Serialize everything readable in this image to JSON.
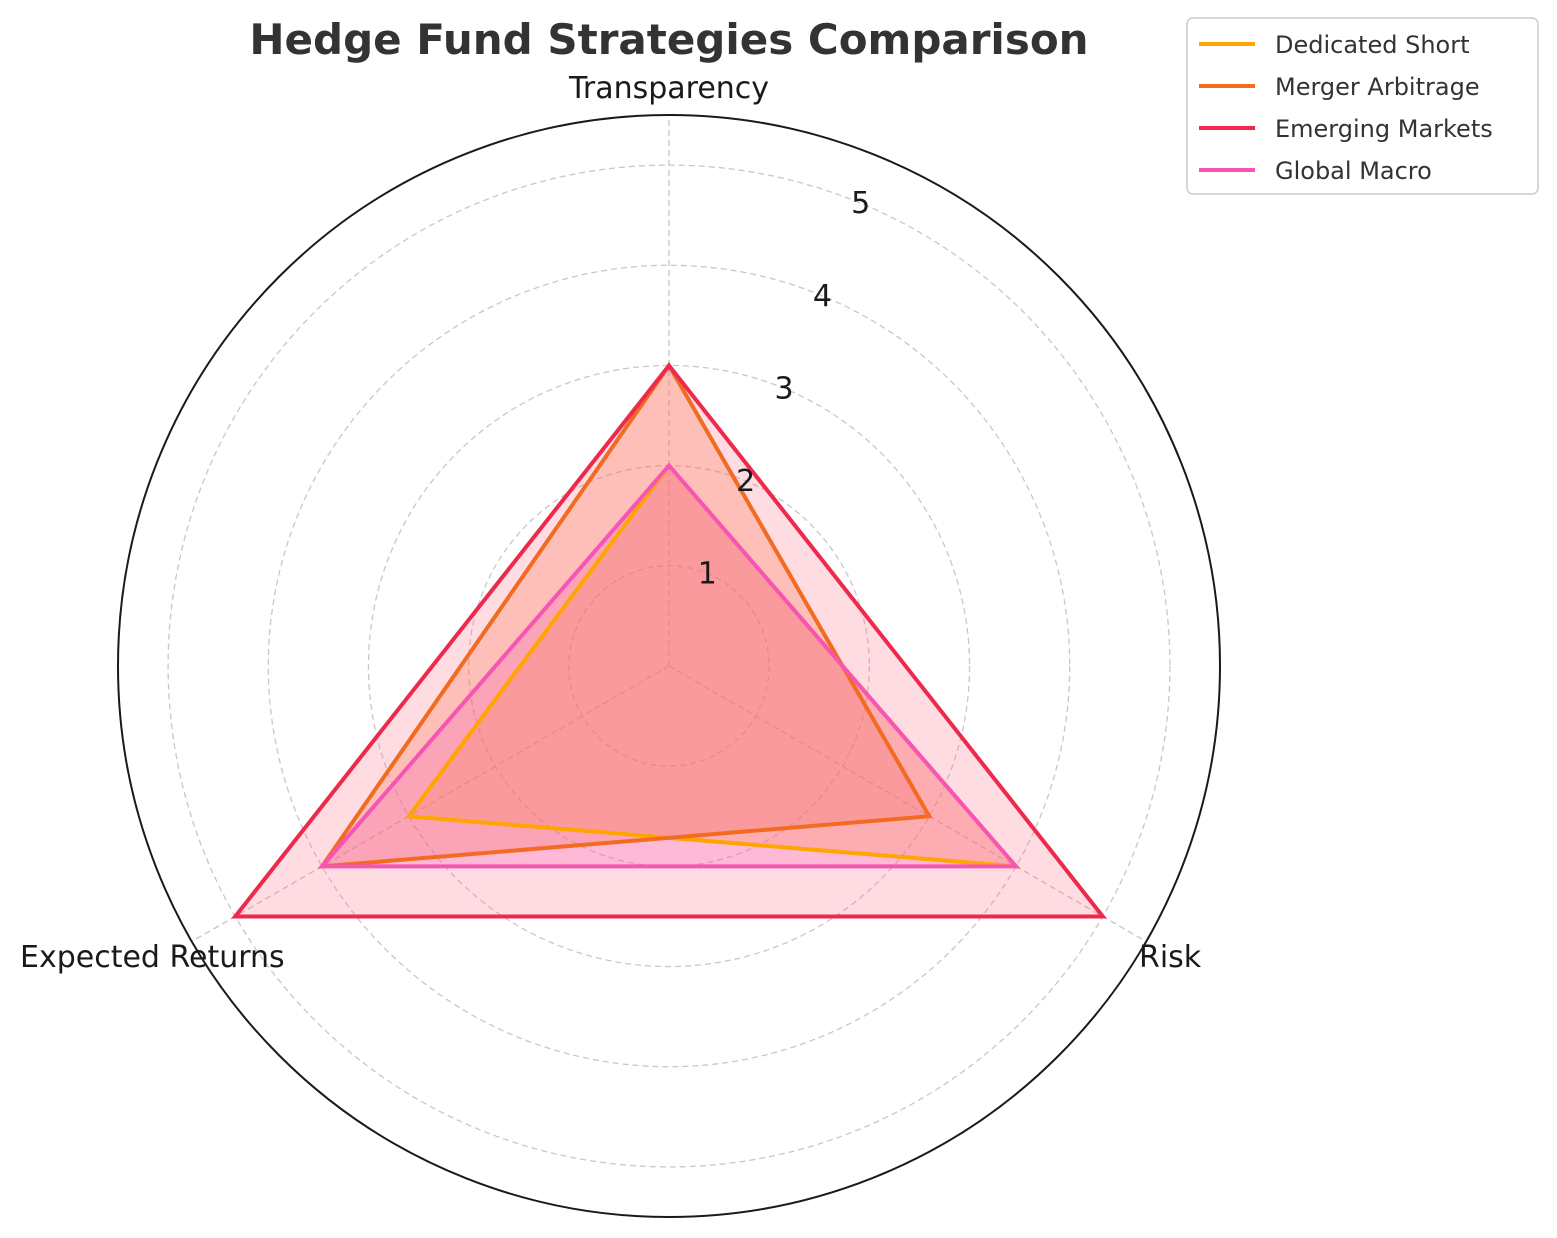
{
  "chart_data": {
    "type": "radar",
    "title": "Hedge Fund Strategies Comparison",
    "axes": [
      "Transparency",
      "Risk",
      "Expected Returns"
    ],
    "rlim": [
      0,
      5.5
    ],
    "rticks": [
      1,
      2,
      3,
      4,
      5
    ],
    "grid": true,
    "legend_position": "top-right",
    "series": [
      {
        "name": "Dedicated Short",
        "values": [
          2,
          4,
          3
        ],
        "color": "#FFA500"
      },
      {
        "name": "Merger Arbitrage",
        "values": [
          3,
          3,
          4
        ],
        "color": "#F26B21"
      },
      {
        "name": "Emerging Markets",
        "values": [
          3,
          5,
          5
        ],
        "color": "#EE2A4C"
      },
      {
        "name": "Global Macro",
        "values": [
          2,
          4,
          4
        ],
        "color": "#F755B5"
      }
    ],
    "fill_colors": [
      "#FFA500",
      "#F26B21",
      "#FF6F8A",
      "#F755B5"
    ]
  }
}
